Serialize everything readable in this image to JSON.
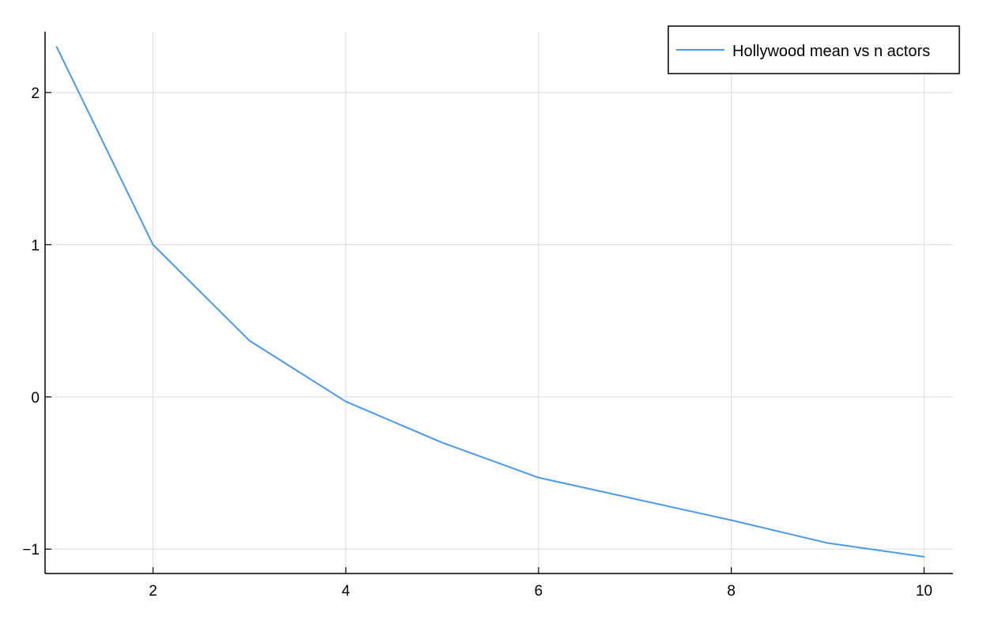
{
  "chart_data": {
    "type": "line",
    "title": "",
    "xlabel": "",
    "ylabel": "",
    "xlim": [
      0.88,
      10.3
    ],
    "ylim": [
      -1.16,
      2.4
    ],
    "x_ticks": [
      2,
      4,
      6,
      8,
      10
    ],
    "y_ticks": [
      -1,
      0,
      1,
      2
    ],
    "x_tick_labels": [
      "2",
      "4",
      "6",
      "8",
      "10"
    ],
    "y_tick_labels": [
      "−1",
      "0",
      "1",
      "2"
    ],
    "grid": true,
    "legend_position": "top-right",
    "series": [
      {
        "name": "Hollywood mean vs n actors",
        "color": "#4a9ae8",
        "x": [
          1,
          2,
          3,
          4,
          5,
          6,
          7,
          8,
          9,
          10
        ],
        "y": [
          2.3,
          1.0,
          0.37,
          -0.03,
          -0.3,
          -0.53,
          -0.67,
          -0.81,
          -0.96,
          -1.05
        ]
      }
    ]
  }
}
